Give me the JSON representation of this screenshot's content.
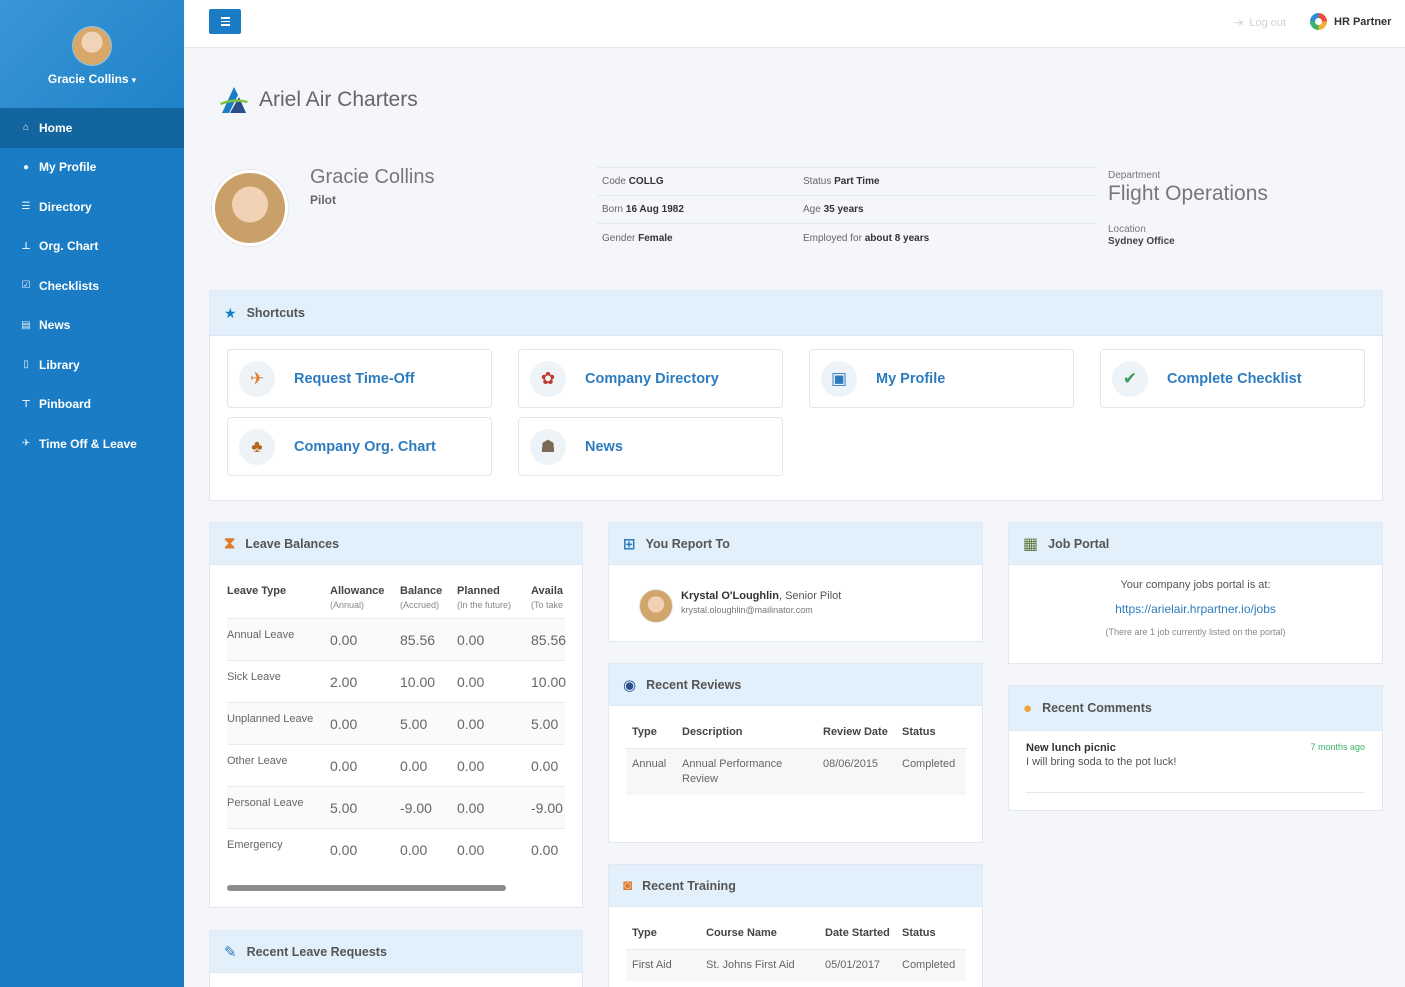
{
  "sidebar": {
    "user_name": "Gracie Collins",
    "items": [
      {
        "label": "Home",
        "icon": "home-icon"
      },
      {
        "label": "My Profile",
        "icon": "user-icon"
      },
      {
        "label": "Directory",
        "icon": "list-icon"
      },
      {
        "label": "Org. Chart",
        "icon": "sitemap-icon"
      },
      {
        "label": "Checklists",
        "icon": "check-square-icon"
      },
      {
        "label": "News",
        "icon": "newspaper-icon"
      },
      {
        "label": "Library",
        "icon": "file-icon"
      },
      {
        "label": "Pinboard",
        "icon": "pin-icon"
      },
      {
        "label": "Time Off & Leave",
        "icon": "plane-icon"
      }
    ]
  },
  "topbar": {
    "logout_label": "Log out",
    "brand_label": "HR Partner"
  },
  "company": {
    "name": "Ariel Air Charters"
  },
  "profile": {
    "name": "Gracie Collins",
    "role": "Pilot",
    "code_label": "Code",
    "code_value": "COLLG",
    "status_label": "Status",
    "status_value": "Part Time",
    "born_label": "Born",
    "born_value": "16 Aug 1982",
    "age_label": "Age",
    "age_value": "35 years",
    "gender_label": "Gender",
    "gender_value": "Female",
    "employed_label": "Employed for",
    "employed_value": "about 8 years",
    "department_label": "Department",
    "department_value": "Flight Operations",
    "location_label": "Location",
    "location_value": "Sydney Office"
  },
  "shortcuts": {
    "title": "Shortcuts",
    "items": [
      {
        "label": "Request Time-Off",
        "icon": "request-time-off-icon"
      },
      {
        "label": "Company Directory",
        "icon": "company-directory-icon"
      },
      {
        "label": "My Profile",
        "icon": "my-profile-icon"
      },
      {
        "label": "Complete Checklist",
        "icon": "complete-checklist-icon"
      },
      {
        "label": "Company Org. Chart",
        "icon": "org-chart-icon"
      },
      {
        "label": "News",
        "icon": "news-icon"
      }
    ]
  },
  "leave_balances": {
    "title": "Leave Balances",
    "headers": [
      {
        "label": "Leave Type",
        "sub": ""
      },
      {
        "label": "Allowance",
        "sub": "(Annual)"
      },
      {
        "label": "Balance",
        "sub": "(Accrued)"
      },
      {
        "label": "Planned",
        "sub": "(In the future)"
      },
      {
        "label": "Availa",
        "sub": "(To take"
      }
    ],
    "rows": [
      {
        "type": "Annual Leave",
        "allowance": "0.00",
        "balance": "85.56",
        "planned": "0.00",
        "available": "85.56",
        "negative": false
      },
      {
        "type": "Sick Leave",
        "allowance": "2.00",
        "balance": "10.00",
        "planned": "0.00",
        "available": "10.00",
        "negative": false
      },
      {
        "type": "Unplanned Leave",
        "allowance": "0.00",
        "balance": "5.00",
        "planned": "0.00",
        "available": "5.00",
        "negative": false
      },
      {
        "type": "Other Leave",
        "allowance": "0.00",
        "balance": "0.00",
        "planned": "0.00",
        "available": "0.00",
        "negative": true
      },
      {
        "type": "Personal Leave",
        "allowance": "5.00",
        "balance": "-9.00",
        "planned": "0.00",
        "available": "-9.00",
        "negative": true
      },
      {
        "type": "Emergency",
        "allowance": "0.00",
        "balance": "0.00",
        "planned": "0.00",
        "available": "0.00",
        "negative": true
      }
    ]
  },
  "you_report_to": {
    "title": "You Report To",
    "name": "Krystal O'Loughlin",
    "position": ", Senior Pilot",
    "email": "krystal.oloughlin@mailinator.com"
  },
  "recent_reviews": {
    "title": "Recent Reviews",
    "headers": [
      "Type",
      "Description",
      "Review Date",
      "Status"
    ],
    "rows": [
      {
        "type": "Annual",
        "description": "Annual Performance Review",
        "date": "08/06/2015",
        "status": "Completed"
      }
    ]
  },
  "recent_training": {
    "title": "Recent Training",
    "headers": [
      "Type",
      "Course Name",
      "Date Started",
      "Status"
    ],
    "rows": [
      {
        "type": "First Aid",
        "course": "St. Johns First Aid",
        "date": "05/01/2017",
        "status": "Completed"
      }
    ]
  },
  "job_portal": {
    "title": "Job Portal",
    "intro": "Your company jobs portal is at:",
    "url": "https://arielair.hrpartner.io/jobs",
    "note": "(There are 1 job currently listed on the portal)"
  },
  "recent_comments": {
    "title": "Recent Comments",
    "items": [
      {
        "title": "New lunch picnic",
        "time": "7 months ago",
        "text": "I will bring soda to the pot luck!"
      }
    ]
  },
  "recent_leave_requests": {
    "title": "Recent Leave Requests"
  },
  "colors": {
    "sidebar": "#1a7cc4",
    "sidebar_active": "#13659f",
    "panel_header": "#e1f0fb",
    "link": "#2d7bbf",
    "negative": "#e23b3b",
    "comment_time": "#3ab36b"
  }
}
